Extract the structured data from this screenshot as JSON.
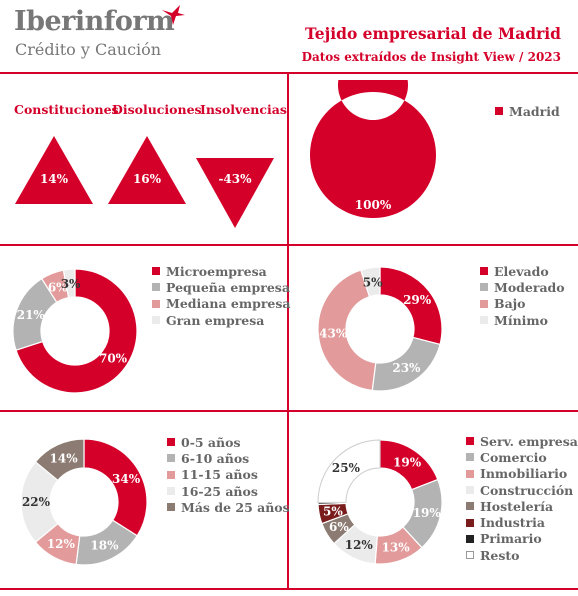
{
  "header": {
    "logo_main": "Iberinform",
    "logo_sub": "Crédito y Caución",
    "title": "Tejido empresarial de Madrid",
    "subtitle": "Datos extraídos de Insight View / 2023"
  },
  "colors": {
    "accent": "#d4002a",
    "red": "#d4002a",
    "grey": "#b3b3b3",
    "pink": "#e39a9a",
    "light": "#ebebeb",
    "brown": "#8c7b72",
    "darkred": "#7a1c1c",
    "black": "#222222",
    "white": "#ffffff"
  },
  "indicators": [
    {
      "label": "Constituciones",
      "value": "14%",
      "direction": "up"
    },
    {
      "label": "Disoluciones",
      "value": "16%",
      "direction": "up"
    },
    {
      "label": "Insolvencias",
      "value": "-43%",
      "direction": "down"
    }
  ],
  "chart_data": [
    {
      "type": "pie",
      "donut": true,
      "categories": [
        "Madrid"
      ],
      "values": [
        100
      ],
      "labels": [
        "100%"
      ],
      "colors": [
        "#d4002a"
      ],
      "legend_position": "right"
    },
    {
      "type": "pie",
      "donut": true,
      "categories": [
        "Microempresa",
        "Pequeña empresa",
        "Mediana empresa",
        "Gran empresa"
      ],
      "values": [
        70,
        21,
        6,
        3
      ],
      "labels": [
        "70%",
        "21%",
        "6%",
        "3%"
      ],
      "colors": [
        "#d4002a",
        "#b3b3b3",
        "#e39a9a",
        "#ebebeb"
      ],
      "legend_position": "right"
    },
    {
      "type": "pie",
      "donut": true,
      "categories": [
        "Elevado",
        "Moderado",
        "Bajo",
        "Mínimo"
      ],
      "values": [
        29,
        23,
        43,
        5
      ],
      "labels": [
        "29%",
        "23%",
        "43%",
        "5%"
      ],
      "colors": [
        "#d4002a",
        "#b3b3b3",
        "#e39a9a",
        "#ebebeb"
      ],
      "legend_position": "right"
    },
    {
      "type": "pie",
      "donut": true,
      "categories": [
        "0-5 años",
        "6-10 años",
        "11-15 años",
        "16-25 años",
        "Más de 25 años"
      ],
      "values": [
        34,
        18,
        12,
        22,
        14
      ],
      "labels": [
        "34%",
        "18%",
        "12%",
        "22%",
        "14%"
      ],
      "colors": [
        "#d4002a",
        "#b3b3b3",
        "#e39a9a",
        "#ebebeb",
        "#8c7b72"
      ],
      "legend_position": "right"
    },
    {
      "type": "pie",
      "donut": true,
      "categories": [
        "Serv. empresa",
        "Comercio",
        "Inmobiliario",
        "Construcción",
        "Hostelería",
        "Industria",
        "Primario",
        "Resto"
      ],
      "values": [
        19,
        19,
        13,
        12,
        6,
        5,
        0.5,
        25
      ],
      "labels": [
        "19%",
        "19%",
        "13%",
        "12%",
        "6%",
        "5%",
        "",
        "25%"
      ],
      "colors": [
        "#d4002a",
        "#b3b3b3",
        "#e39a9a",
        "#ebebeb",
        "#8c7b72",
        "#7a1c1c",
        "#222222",
        "#ffffff"
      ],
      "legend_position": "right"
    }
  ]
}
